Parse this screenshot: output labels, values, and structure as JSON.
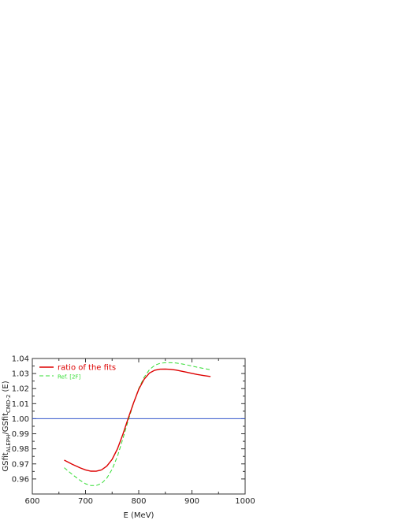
{
  "chart_data": {
    "type": "line",
    "xlabel": "E  (MeV)",
    "ylabel": {
      "prefix": "GSfit",
      "sub1": "ALEPH",
      "middle": "/GSfit",
      "sub2": "CMD-2",
      "suffix": " (E)"
    },
    "xlim": [
      600,
      1000
    ],
    "ylim": [
      0.95,
      1.04
    ],
    "x_ticks": [
      "600",
      "700",
      "800",
      "900",
      "1000"
    ],
    "x_tick_values": [
      600,
      650,
      700,
      750,
      800,
      850,
      900,
      950,
      1000
    ],
    "y_ticks": [
      "0.96",
      "0.97",
      "0.98",
      "0.99",
      "1.00",
      "1.01",
      "1.02",
      "1.03",
      "1.04"
    ],
    "y_tick_values": [
      0.96,
      0.97,
      0.98,
      0.99,
      1.0,
      1.01,
      1.02,
      1.03,
      1.04
    ],
    "legend_position": "top-left",
    "grid": false,
    "series": [
      {
        "name": "ratio of the fits",
        "color": "#dd0000",
        "style": "solid",
        "x": [
          660,
          675,
          690,
          700,
          710,
          720,
          730,
          740,
          750,
          760,
          770,
          780,
          790,
          800,
          810,
          820,
          830,
          840,
          850,
          860,
          870,
          880,
          890,
          900,
          910,
          920,
          935
        ],
        "y": [
          0.9725,
          0.9698,
          0.9673,
          0.966,
          0.9652,
          0.9651,
          0.966,
          0.9685,
          0.973,
          0.98,
          0.9895,
          1.0,
          1.0103,
          1.0195,
          1.0262,
          1.0303,
          1.0322,
          1.0329,
          1.033,
          1.0328,
          1.0323,
          1.0316,
          1.0309,
          1.0301,
          1.0294,
          1.0288,
          1.028
        ]
      },
      {
        "name": "Ref. [2F]",
        "color": "#33dd33",
        "style": "dashed",
        "x": [
          660,
          675,
          690,
          700,
          710,
          720,
          730,
          740,
          750,
          760,
          770,
          780,
          790,
          800,
          810,
          820,
          830,
          840,
          850,
          860,
          870,
          880,
          890,
          900,
          910,
          920,
          935
        ],
        "y": [
          0.9675,
          0.963,
          0.959,
          0.9568,
          0.9556,
          0.9556,
          0.957,
          0.9605,
          0.9665,
          0.975,
          0.9865,
          0.9985,
          1.01,
          1.02,
          1.0275,
          1.0325,
          1.0355,
          1.0368,
          1.0372,
          1.0372,
          1.037,
          1.0365,
          1.0358,
          1.035,
          1.0342,
          1.0335,
          1.0325
        ]
      },
      {
        "name": "",
        "color": "#3355cc",
        "style": "solid",
        "x": [
          600,
          1000
        ],
        "y": [
          1.0,
          1.0
        ]
      }
    ],
    "legend": [
      {
        "label": "ratio of the fits",
        "series": 0
      },
      {
        "label": "Ref. [2F]",
        "series": 1
      }
    ]
  }
}
